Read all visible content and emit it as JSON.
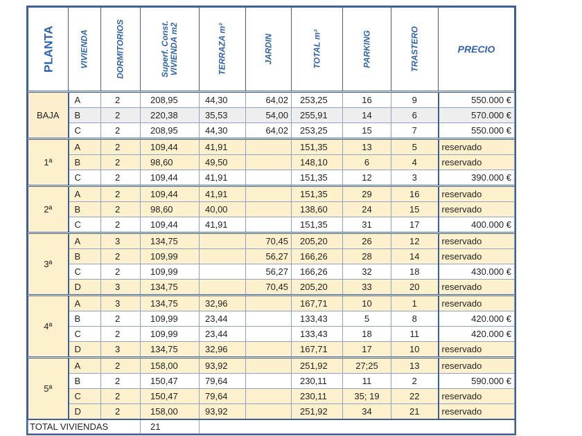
{
  "headers": {
    "planta": "PLANTA",
    "vivienda": "VIVIENDA",
    "dormitorios": "DORMITORIOS",
    "superficie": "Superf. Const. VIVIENDA m2",
    "terraza": "TERRAZA  m²",
    "jardin": "JARDIN",
    "total": "TOTAL  m²",
    "parking": "PARKING",
    "trastero": "TRASTERO",
    "precio": "PRECIO"
  },
  "colors": {
    "border": "#3d5f94",
    "header_text": "#2f63b0",
    "reserved_row": "#fdf0cc",
    "planta_cell": "#fdefcd"
  },
  "groups": [
    {
      "planta": "BAJA",
      "rows": [
        {
          "vivienda": "A",
          "dormitorios": "2",
          "superficie": "208,95",
          "terraza": "44,30",
          "jardin": "64,02",
          "total": "253,25",
          "parking": "16",
          "trastero": "9",
          "precio": "550.000 €"
        },
        {
          "vivienda": "B",
          "dormitorios": "2",
          "superficie": "220,38",
          "terraza": "35,53",
          "jardin": "54,00",
          "total": "255,91",
          "parking": "14",
          "trastero": "6",
          "precio": "570.000 €"
        },
        {
          "vivienda": "C",
          "dormitorios": "2",
          "superficie": "208,95",
          "terraza": "44,30",
          "jardin": "64,02",
          "total": "253,25",
          "parking": "15",
          "trastero": "7",
          "precio": "550.000 €"
        }
      ]
    },
    {
      "planta": "1ª",
      "rows": [
        {
          "vivienda": "A",
          "dormitorios": "2",
          "superficie": "109,44",
          "terraza": "41,91",
          "jardin": "",
          "total": "151,35",
          "parking": "13",
          "trastero": "5",
          "precio": "reservado"
        },
        {
          "vivienda": "B",
          "dormitorios": "2",
          "superficie": "98,60",
          "terraza": "49,50",
          "jardin": "",
          "total": "148,10",
          "parking": "6",
          "trastero": "4",
          "precio": "reservado"
        },
        {
          "vivienda": "C",
          "dormitorios": "2",
          "superficie": "109,44",
          "terraza": "41,91",
          "jardin": "",
          "total": "151,35",
          "parking": "12",
          "trastero": "3",
          "precio": "390.000 €"
        }
      ]
    },
    {
      "planta": "2ª",
      "rows": [
        {
          "vivienda": "A",
          "dormitorios": "2",
          "superficie": "109,44",
          "terraza": "41,91",
          "jardin": "",
          "total": "151,35",
          "parking": "29",
          "trastero": "16",
          "precio": "reservado"
        },
        {
          "vivienda": "B",
          "dormitorios": "2",
          "superficie": "98,60",
          "terraza": "40,00",
          "jardin": "",
          "total": "138,60",
          "parking": "24",
          "trastero": "15",
          "precio": "reservado"
        },
        {
          "vivienda": "C",
          "dormitorios": "2",
          "superficie": "109,44",
          "terraza": "41,91",
          "jardin": "",
          "total": "151,35",
          "parking": "31",
          "trastero": "17",
          "precio": "400.000 €"
        }
      ]
    },
    {
      "planta": "3ª",
      "rows": [
        {
          "vivienda": "A",
          "dormitorios": "3",
          "superficie": "134,75",
          "terraza": "",
          "jardin": "70,45",
          "total": "205,20",
          "parking": "26",
          "trastero": "12",
          "precio": "reservado"
        },
        {
          "vivienda": "B",
          "dormitorios": "2",
          "superficie": "109,99",
          "terraza": "",
          "jardin": "56,27",
          "total": "166,26",
          "parking": "28",
          "trastero": "14",
          "precio": "reservado"
        },
        {
          "vivienda": "C",
          "dormitorios": "2",
          "superficie": "109,99",
          "terraza": "",
          "jardin": "56,27",
          "total": "166,26",
          "parking": "32",
          "trastero": "18",
          "precio": "430.000 €"
        },
        {
          "vivienda": "D",
          "dormitorios": "3",
          "superficie": "134,75",
          "terraza": "",
          "jardin": "70,45",
          "total": "205,20",
          "parking": "33",
          "trastero": "20",
          "precio": "reservado"
        }
      ]
    },
    {
      "planta": "4ª",
      "rows": [
        {
          "vivienda": "A",
          "dormitorios": "3",
          "superficie": "134,75",
          "terraza": "32,96",
          "jardin": "",
          "total": "167,71",
          "parking": "10",
          "trastero": "1",
          "precio": "reservado"
        },
        {
          "vivienda": "B",
          "dormitorios": "2",
          "superficie": "109,99",
          "terraza": "23,44",
          "jardin": "",
          "total": "133,43",
          "parking": "5",
          "trastero": "8",
          "precio": "420.000 €"
        },
        {
          "vivienda": "C",
          "dormitorios": "2",
          "superficie": "109,99",
          "terraza": "23,44",
          "jardin": "",
          "total": "133,43",
          "parking": "18",
          "trastero": "11",
          "precio": "420.000 €"
        },
        {
          "vivienda": "D",
          "dormitorios": "3",
          "superficie": "134,75",
          "terraza": "32,96",
          "jardin": "",
          "total": "167,71",
          "parking": "17",
          "trastero": "10",
          "precio": "reservado"
        }
      ]
    },
    {
      "planta": "5ª",
      "rows": [
        {
          "vivienda": "A",
          "dormitorios": "2",
          "superficie": "158,00",
          "terraza": "93,92",
          "jardin": "",
          "total": "251,92",
          "parking": "27;25",
          "trastero": "13",
          "precio": "reservado"
        },
        {
          "vivienda": "B",
          "dormitorios": "2",
          "superficie": "150,47",
          "terraza": "79,64",
          "jardin": "",
          "total": "230,11",
          "parking": "11",
          "trastero": "2",
          "precio": "590.000 €"
        },
        {
          "vivienda": "C",
          "dormitorios": "2",
          "superficie": "150,47",
          "terraza": "79,64",
          "jardin": "",
          "total": "230,11",
          "parking": "35; 19",
          "trastero": "22",
          "precio": "reservado"
        },
        {
          "vivienda": "D",
          "dormitorios": "2",
          "superficie": "158,00",
          "terraza": "93,92",
          "jardin": "",
          "total": "251,92",
          "parking": "34",
          "trastero": "21",
          "precio": "reservado"
        }
      ]
    }
  ],
  "footer": {
    "label": "TOTAL VIVIENDAS",
    "count": "21"
  }
}
